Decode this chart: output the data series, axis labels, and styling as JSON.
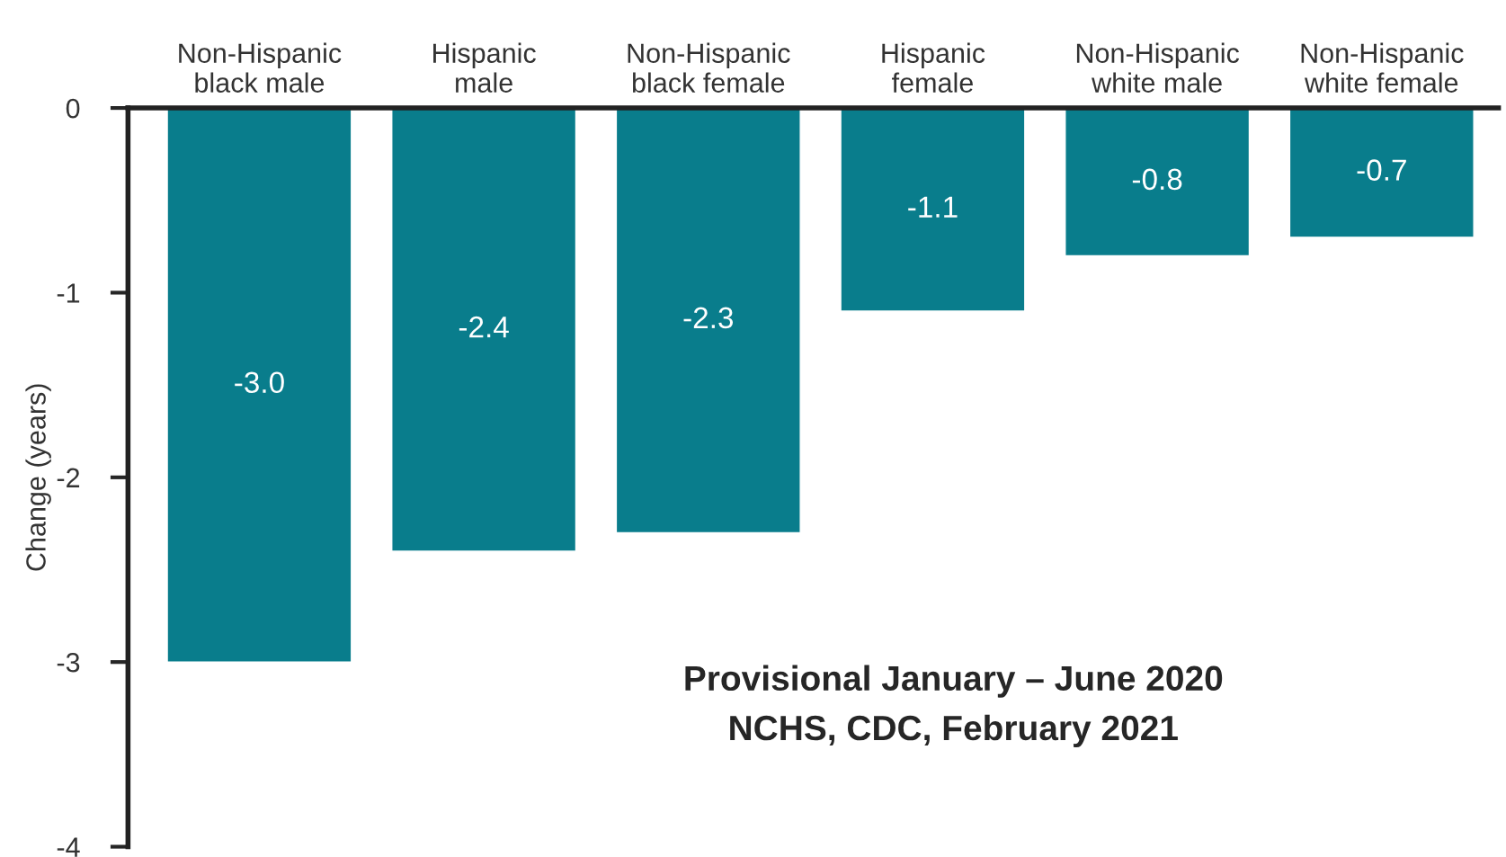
{
  "chart_data": {
    "type": "bar",
    "ylabel": "Change (years)",
    "categories": [
      "Non-Hispanic\nblack male",
      "Hispanic\nmale",
      "Non-Hispanic\nblack female",
      "Hispanic\nfemale",
      "Non-Hispanic\nwhite male",
      "Non-Hispanic\nwhite female"
    ],
    "values": [
      -3.0,
      -2.4,
      -2.3,
      -1.1,
      -0.8,
      -0.7
    ],
    "color": "#097d8c",
    "ylim": [
      -4,
      0
    ],
    "yticks": [
      0,
      -1,
      -2,
      -3,
      -4
    ],
    "grid": false,
    "value_labels": [
      "-3.0",
      "-2.4",
      "-2.3",
      "-1.1",
      "-0.8",
      "-0.7"
    ],
    "annotations": [
      "Provisional January – June 2020",
      "NCHS, CDC, February 2021"
    ]
  }
}
